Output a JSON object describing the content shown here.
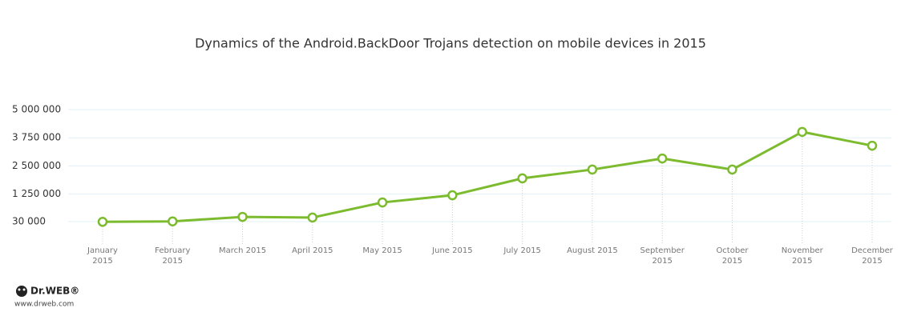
{
  "chart_data": {
    "type": "line",
    "title": "Dynamics of the Android.BackDoor Trojans detection on mobile devices in 2015",
    "categories": [
      "January 2015",
      "February 2015",
      "March 2015",
      "April 2015",
      "May 2015",
      "June 2015",
      "July 2015",
      "August 2015",
      "September 2015",
      "October 2015",
      "November 2015",
      "December 2015"
    ],
    "values": [
      20000,
      40000,
      240000,
      210000,
      880000,
      1200000,
      1950000,
      2340000,
      2830000,
      2340000,
      4010000,
      3400000
    ],
    "color": "#7cbb2e",
    "ylim": [
      30000,
      5000000
    ],
    "yticks": [
      {
        "value": 30000,
        "label": "30 000"
      },
      {
        "value": 1250000,
        "label": "1 250 000"
      },
      {
        "value": 2500000,
        "label": "2 500 000"
      },
      {
        "value": 3750000,
        "label": "3 750 000"
      },
      {
        "value": 5000000,
        "label": "5 000 000"
      }
    ],
    "grid": true
  },
  "logo": {
    "name": "Dr.WEB®",
    "url": "www.drweb.com"
  }
}
